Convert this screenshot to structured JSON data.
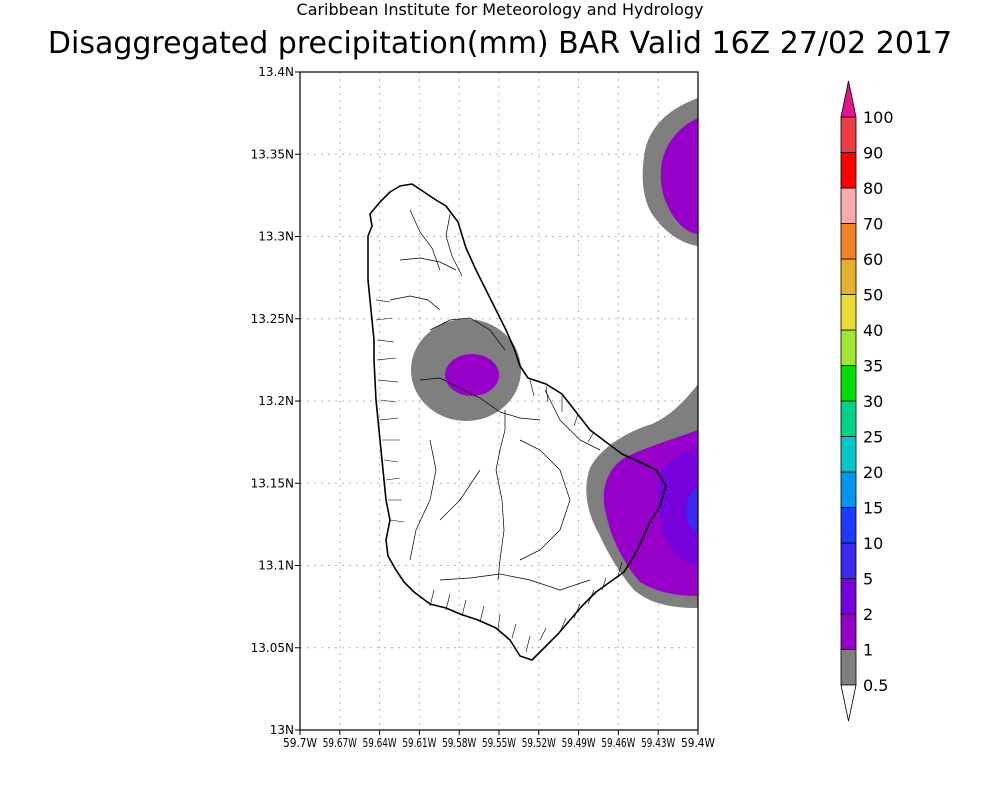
{
  "header": {
    "line1": "Caribbean Institute for Meteorology and Hydrology",
    "line2": "Disaggregated precipitation(mm) BAR Valid 16Z 27/02 2017"
  },
  "map": {
    "region": "Barbados",
    "lon_range": [
      -59.7,
      -59.4
    ],
    "lat_range": [
      13.0,
      13.4
    ],
    "grid": true,
    "lat_ticks": [
      "13N",
      "13.05N",
      "13.1N",
      "13.15N",
      "13.2N",
      "13.25N",
      "13.3N",
      "13.35N",
      "13.4N"
    ],
    "lon_ticks": [
      "59.7W",
      "59.67W",
      "59.64W",
      "59.61W",
      "59.58W",
      "59.55W",
      "59.52W",
      "59.49W",
      "59.46W",
      "59.43W",
      "59.4W"
    ]
  },
  "colorbar": {
    "position": "right",
    "levels": [
      "0.5",
      "1",
      "2",
      "5",
      "10",
      "15",
      "20",
      "25",
      "30",
      "35",
      "40",
      "50",
      "60",
      "70",
      "80",
      "90",
      "100"
    ],
    "colors": [
      "#7f7f7f",
      "#9600c8",
      "#7800dc",
      "#3c28f0",
      "#1e3cff",
      "#0096f0",
      "#00c8c8",
      "#00d28c",
      "#00dc00",
      "#a0e632",
      "#e6dc32",
      "#e6af2d",
      "#f08228",
      "#faaaaa",
      "#ff0000",
      "#f03c46"
    ],
    "top_arrow_color": "#e6148c",
    "bottom_arrow_color": "#ffffff"
  },
  "precip_areas": [
    {
      "name": "central-west",
      "outer": "0.5-1",
      "inner": "1-2"
    },
    {
      "name": "north-east-offshore",
      "outer": "0.5-1",
      "inner": "1-2"
    },
    {
      "name": "east-coast",
      "outer": "0.5-1",
      "inner": "1-2",
      "core": "2-5"
    }
  ]
}
